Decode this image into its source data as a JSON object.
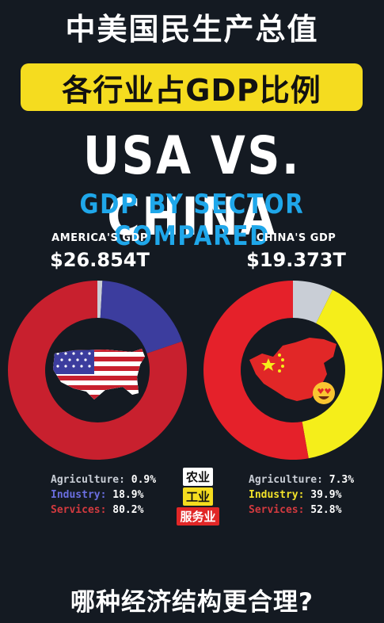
{
  "header": {
    "title_cn": "中美国民生产总值",
    "banner_cn": "各行业占GDP比例",
    "headline": "USA VS. CHINA",
    "subheadline": "GDP BY SECTOR COMPARED"
  },
  "footer": {
    "question_cn": "哪种经济结构更合理?"
  },
  "legend_tags_cn": [
    "农业",
    "工业",
    "服务业"
  ],
  "colors": {
    "us_agriculture": "#c9ced6",
    "us_industry": "#3c3d9e",
    "us_services": "#c8202e",
    "cn_agriculture": "#c9ced6",
    "cn_industry": "#f5ee1a",
    "cn_services": "#e5212a",
    "accent_blue": "#1fa7ea",
    "banner_yellow": "#f5dc1f"
  },
  "chart_data": [
    {
      "type": "pie",
      "variant": "donut",
      "title": "AMERICA'S GDP",
      "total_label": "$26.854T",
      "categories": [
        "Agriculture",
        "Industry",
        "Services"
      ],
      "values": [
        0.9,
        18.9,
        80.2
      ],
      "value_labels": [
        "0.9%",
        "18.9%",
        "80.2%"
      ],
      "center_icon": "usa-map-flag-icon"
    },
    {
      "type": "pie",
      "variant": "donut",
      "title": "CHINA'S GDP",
      "total_label": "$19.373T",
      "categories": [
        "Agriculture",
        "Industry",
        "Services"
      ],
      "values": [
        7.3,
        39.9,
        52.8
      ],
      "value_labels": [
        "7.3%",
        "39.9%",
        "52.8%"
      ],
      "center_icon": "china-map-flag-icon"
    }
  ]
}
